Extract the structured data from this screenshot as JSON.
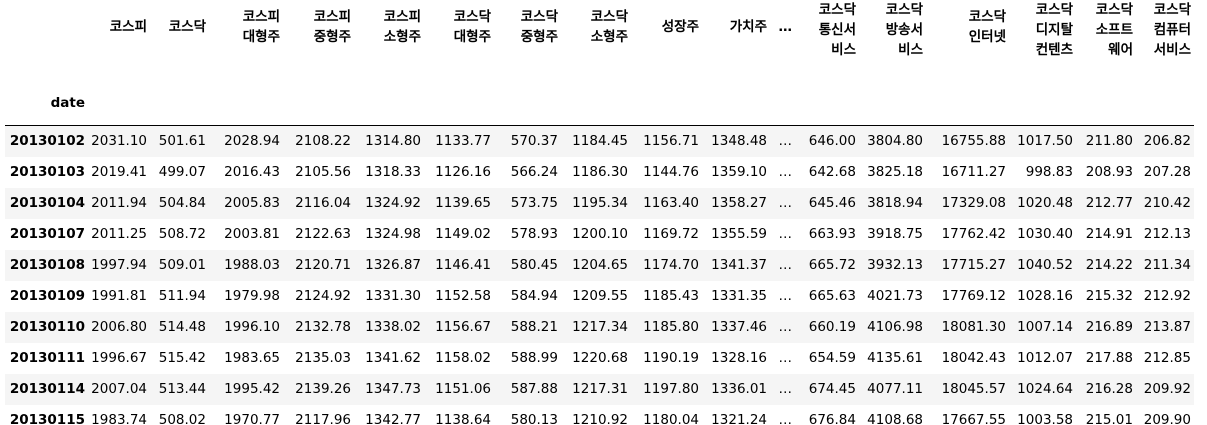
{
  "index_name": "date",
  "ellipsis": "…",
  "columns": [
    [
      "코스피"
    ],
    [
      "코스닥"
    ],
    [
      "코스피",
      "대형주"
    ],
    [
      "코스피",
      "중형주"
    ],
    [
      "코스피",
      "소형주"
    ],
    [
      "코스닥",
      "대형주"
    ],
    [
      "코스닥",
      "중형주"
    ],
    [
      "코스닥",
      "소형주"
    ],
    [
      "성장주"
    ],
    [
      "가치주"
    ],
    [
      "…"
    ],
    [
      "코스닥",
      "통신서",
      "비스"
    ],
    [
      "코스닥",
      "방송서",
      "비스"
    ],
    [
      "코스닥",
      "인터넷"
    ],
    [
      "코스닥",
      "디지탈",
      "컨텐츠"
    ],
    [
      "코스닥",
      "소프트",
      "웨어"
    ],
    [
      "코스닥",
      "컴퓨터",
      "서비스"
    ]
  ],
  "rows": [
    {
      "date": "20130102",
      "values": [
        "2031.10",
        "501.61",
        "2028.94",
        "2108.22",
        "1314.80",
        "1133.77",
        "570.37",
        "1184.45",
        "1156.71",
        "1348.48",
        "…",
        "646.00",
        "3804.80",
        "16755.88",
        "1017.50",
        "211.80",
        "206.82"
      ]
    },
    {
      "date": "20130103",
      "values": [
        "2019.41",
        "499.07",
        "2016.43",
        "2105.56",
        "1318.33",
        "1126.16",
        "566.24",
        "1186.30",
        "1144.76",
        "1359.10",
        "…",
        "642.68",
        "3825.18",
        "16711.27",
        "998.83",
        "208.93",
        "207.28"
      ]
    },
    {
      "date": "20130104",
      "values": [
        "2011.94",
        "504.84",
        "2005.83",
        "2116.04",
        "1324.92",
        "1139.65",
        "573.75",
        "1195.34",
        "1163.40",
        "1358.27",
        "…",
        "645.46",
        "3818.94",
        "17329.08",
        "1020.48",
        "212.77",
        "210.42"
      ]
    },
    {
      "date": "20130107",
      "values": [
        "2011.25",
        "508.72",
        "2003.81",
        "2122.63",
        "1324.98",
        "1149.02",
        "578.93",
        "1200.10",
        "1169.72",
        "1355.59",
        "…",
        "663.93",
        "3918.75",
        "17762.42",
        "1030.40",
        "214.91",
        "212.13"
      ]
    },
    {
      "date": "20130108",
      "values": [
        "1997.94",
        "509.01",
        "1988.03",
        "2120.71",
        "1326.87",
        "1146.41",
        "580.45",
        "1204.65",
        "1174.70",
        "1341.37",
        "…",
        "665.72",
        "3932.13",
        "17715.27",
        "1040.52",
        "214.22",
        "211.34"
      ]
    },
    {
      "date": "20130109",
      "values": [
        "1991.81",
        "511.94",
        "1979.98",
        "2124.92",
        "1331.30",
        "1152.58",
        "584.94",
        "1209.55",
        "1185.43",
        "1331.35",
        "…",
        "665.63",
        "4021.73",
        "17769.12",
        "1028.16",
        "215.32",
        "212.92"
      ]
    },
    {
      "date": "20130110",
      "values": [
        "2006.80",
        "514.48",
        "1996.10",
        "2132.78",
        "1338.02",
        "1156.67",
        "588.21",
        "1217.34",
        "1185.80",
        "1337.46",
        "…",
        "660.19",
        "4106.98",
        "18081.30",
        "1007.14",
        "216.89",
        "213.87"
      ]
    },
    {
      "date": "20130111",
      "values": [
        "1996.67",
        "515.42",
        "1983.65",
        "2135.03",
        "1341.62",
        "1158.02",
        "588.99",
        "1220.68",
        "1190.19",
        "1328.16",
        "…",
        "654.59",
        "4135.61",
        "18042.43",
        "1012.07",
        "217.88",
        "212.85"
      ]
    },
    {
      "date": "20130114",
      "values": [
        "2007.04",
        "513.44",
        "1995.42",
        "2139.26",
        "1347.73",
        "1151.06",
        "587.88",
        "1217.31",
        "1197.80",
        "1336.01",
        "…",
        "674.45",
        "4077.11",
        "18045.57",
        "1024.64",
        "216.28",
        "209.92"
      ]
    },
    {
      "date": "20130115",
      "values": [
        "1983.74",
        "508.02",
        "1970.77",
        "2117.96",
        "1342.77",
        "1138.64",
        "580.13",
        "1210.92",
        "1180.04",
        "1321.24",
        "…",
        "676.84",
        "4108.68",
        "17667.55",
        "1003.58",
        "215.01",
        "209.90"
      ]
    }
  ]
}
